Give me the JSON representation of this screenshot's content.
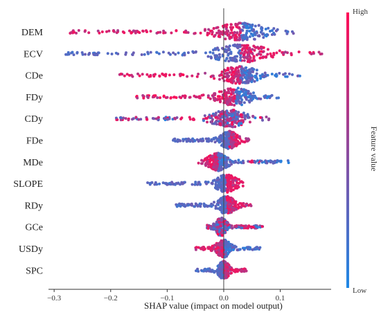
{
  "chart_data": {
    "type": "scatter",
    "subtype": "shap-beeswarm",
    "title": "",
    "xlabel": "SHAP value (impact on model output)",
    "ylabel": "",
    "xlim": [
      -0.31,
      0.19
    ],
    "xticks": [
      -0.3,
      -0.2,
      -0.1,
      0.0,
      0.1
    ],
    "xtick_labels": [
      "−0.3",
      "−0.2",
      "−0.1",
      "0.0",
      "0.1"
    ],
    "grid": false,
    "colorbar": {
      "title": "Feature value",
      "high_label": "High",
      "low_label": "Low",
      "low_color": "#1e88e5",
      "high_color": "#ff0d57",
      "placement": "right"
    },
    "features": [
      {
        "name": "DEM",
        "min": -0.28,
        "max": 0.125,
        "mode": 0.03,
        "low_side": "right",
        "high_tail": -0.23
      },
      {
        "name": "ECV",
        "min": -0.28,
        "max": 0.175,
        "mode": 0.03,
        "low_side": "left",
        "high_tail": 0.12
      },
      {
        "name": "CDe",
        "min": -0.185,
        "max": 0.135,
        "mode": 0.03,
        "low_side": "right",
        "high_tail": -0.12
      },
      {
        "name": "FDy",
        "min": -0.155,
        "max": 0.1,
        "mode": 0.02,
        "low_side": "right",
        "high_tail": -0.09
      },
      {
        "name": "CDy",
        "min": -0.195,
        "max": 0.08,
        "mode": 0.01,
        "low_side": "mixed",
        "high_tail": -0.06
      },
      {
        "name": "FDe",
        "min": -0.09,
        "max": 0.045,
        "mode": 0.01,
        "low_side": "left",
        "high_tail": 0.03
      },
      {
        "name": "MDe",
        "min": -0.045,
        "max": 0.115,
        "mode": -0.01,
        "low_side": "right",
        "high_tail": 0.05
      },
      {
        "name": "SLOPE",
        "min": -0.135,
        "max": 0.035,
        "mode": 0.005,
        "low_side": "left",
        "high_tail": 0.02
      },
      {
        "name": "RDy",
        "min": -0.085,
        "max": 0.05,
        "mode": 0.005,
        "low_side": "left",
        "high_tail": 0.03
      },
      {
        "name": "GCe",
        "min": -0.03,
        "max": 0.07,
        "mode": -0.005,
        "low_side": "mixed",
        "high_tail": 0.04
      },
      {
        "name": "USDy",
        "min": -0.05,
        "max": 0.065,
        "mode": 0.0,
        "low_side": "right",
        "high_tail": -0.03
      },
      {
        "name": "SPC",
        "min": -0.05,
        "max": 0.04,
        "mode": 0.0,
        "low_side": "left",
        "high_tail": 0.02
      }
    ]
  }
}
